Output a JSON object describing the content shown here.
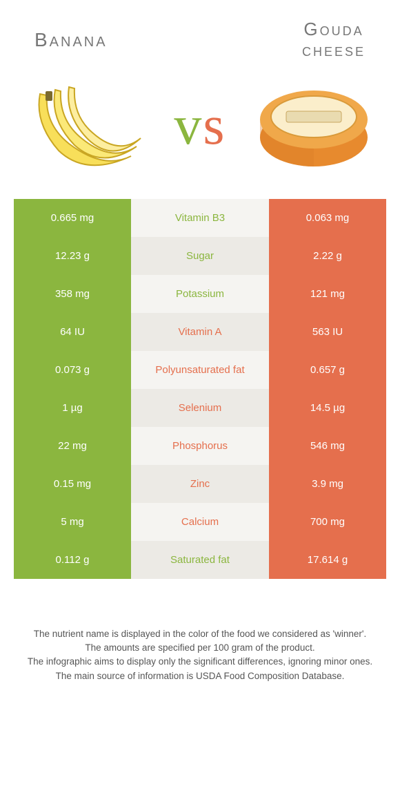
{
  "colors": {
    "banana": "#8bb63f",
    "cheese": "#e56f4d",
    "bg_light": "#f5f4f1",
    "bg_dark": "#eceae5",
    "text_gray": "#777777",
    "footnote": "#555555"
  },
  "titles": {
    "left": "Banana",
    "right_line1": "Gouda",
    "right_line2": "cheese"
  },
  "vs": {
    "v": "v",
    "s": "s"
  },
  "table": {
    "rows": [
      {
        "left": "0.665 mg",
        "label": "Vitamin B3",
        "right": "0.063 mg",
        "winner": "banana"
      },
      {
        "left": "12.23 g",
        "label": "Sugar",
        "right": "2.22 g",
        "winner": "banana"
      },
      {
        "left": "358 mg",
        "label": "Potassium",
        "right": "121 mg",
        "winner": "banana"
      },
      {
        "left": "64 IU",
        "label": "Vitamin A",
        "right": "563 IU",
        "winner": "cheese"
      },
      {
        "left": "0.073 g",
        "label": "Polyunsaturated fat",
        "right": "0.657 g",
        "winner": "cheese"
      },
      {
        "left": "1 µg",
        "label": "Selenium",
        "right": "14.5 µg",
        "winner": "cheese"
      },
      {
        "left": "22 mg",
        "label": "Phosphorus",
        "right": "546 mg",
        "winner": "cheese"
      },
      {
        "left": "0.15 mg",
        "label": "Zinc",
        "right": "3.9 mg",
        "winner": "cheese"
      },
      {
        "left": "5 mg",
        "label": "Calcium",
        "right": "700 mg",
        "winner": "cheese"
      },
      {
        "left": "0.112 g",
        "label": "Saturated fat",
        "right": "17.614 g",
        "winner": "banana"
      }
    ]
  },
  "footnotes": [
    "The nutrient name is displayed in the color of the food we considered as 'winner'.",
    "The amounts are specified per 100 gram of the product.",
    "The infographic aims to display only the significant differences, ignoring minor ones.",
    "The main source of information is USDA Food Composition Database."
  ]
}
